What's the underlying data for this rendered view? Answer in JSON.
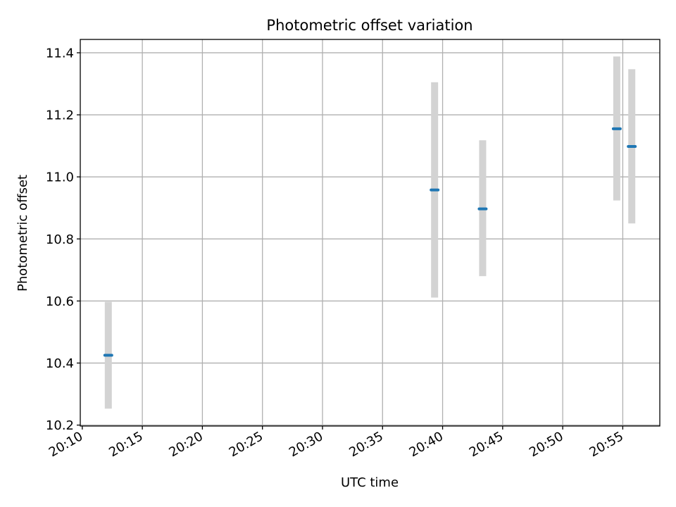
{
  "chart_data": {
    "type": "scatter",
    "title": "Photometric offset variation",
    "xlabel": "UTC time",
    "ylabel": "Photometric offset",
    "x_ticks": [
      "20:10",
      "20:15",
      "20:20",
      "20:25",
      "20:30",
      "20:35",
      "20:40",
      "20:45",
      "20:50",
      "20:55"
    ],
    "y_ticks": [
      "10.2",
      "10.4",
      "10.6",
      "10.8",
      "11.0",
      "11.2",
      "11.4"
    ],
    "xlim": [
      "20:09:50",
      "20:58:05"
    ],
    "ylim": [
      10.197,
      11.443
    ],
    "grid": true,
    "marker_color": "#1f77b4",
    "errorbar_color": "#d3d3d3",
    "points": [
      {
        "x": "20:12:10",
        "y": 10.425,
        "yerr_low": 10.253,
        "yerr_high": 10.597
      },
      {
        "x": "20:39:20",
        "y": 10.958,
        "yerr_low": 10.611,
        "yerr_high": 11.305
      },
      {
        "x": "20:43:20",
        "y": 10.897,
        "yerr_low": 10.68,
        "yerr_high": 11.118
      },
      {
        "x": "20:54:30",
        "y": 11.155,
        "yerr_low": 10.924,
        "yerr_high": 11.388
      },
      {
        "x": "20:55:45",
        "y": 11.098,
        "yerr_low": 10.85,
        "yerr_high": 11.347
      }
    ]
  }
}
